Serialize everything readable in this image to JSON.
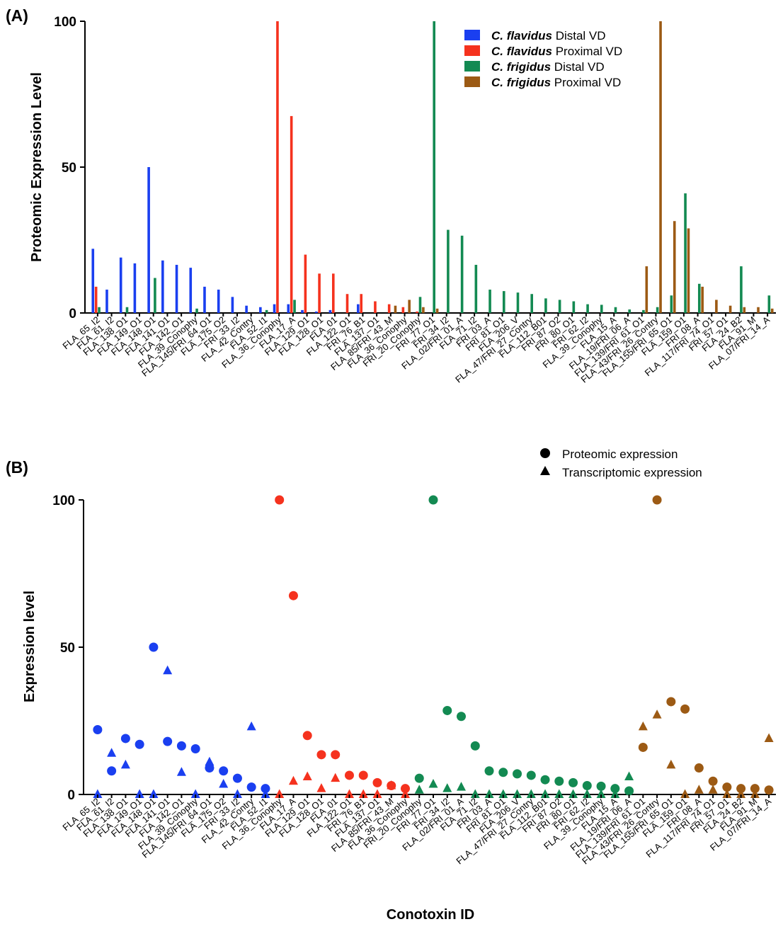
{
  "chart_data": [
    {
      "panel": "(A)",
      "type": "bar",
      "ylabel": "Proteomic Expression Level",
      "xlabel": "",
      "ylim": [
        0,
        100
      ],
      "yticks": [
        0,
        50,
        100
      ],
      "categories": [
        "FLA_65_I2",
        "FLA_61_I2",
        "FLA_138_O1",
        "FLA_149_O1",
        "FLA_148_O1",
        "FLA_141_O1",
        "FLA_142_O1",
        "FLA_39_Conophy",
        "FLA_145/FRI_64_O1",
        "FLA_175_O2",
        "FRI_33_I2",
        "FLA_42_Contry",
        "FLA_52_I1",
        "FLA_36_Conophy",
        "FLA_17_A",
        "FLA_129_O1",
        "FLA_128_O1",
        "FLA_01",
        "FLA_122_O1",
        "FRI_76_B1",
        "FLA_137_O1",
        "FLA_85/FRI_43_M",
        "FLA_36_Conophy",
        "FRI_20_Conophy",
        "FRI_77_O1",
        "FRI_34_I2",
        "FLA_02/FRI_01_A",
        "FLA_71_I2",
        "FRI_03_A",
        "FRI_81_O1",
        "FLA_206_V",
        "FLA_47/FRI_27_Contry",
        "FLA_112_B01",
        "FRI_87_O2",
        "FRI_80_O1",
        "FRI_62_I2",
        "FLA_39_Conophy",
        "FLA_15_A",
        "FLA_19/FRI_06_A",
        "FLA_139/FRI_61_O1",
        "FLA_43/FRI_26_Contry",
        "FLA_155/FRI_65_O1",
        "FLA_159_O1",
        "FRI_08_A",
        "FLA_117/FRI_74_O1",
        "FRI_57_O1",
        "FLA_24_B2",
        "FLA_91_M",
        "FLA_07/FRI_14_A"
      ],
      "legend": {
        "position": "top-right",
        "entries": [
          {
            "species": "C. flavidus",
            "label": "Distal VD",
            "color": "#1a3ff0"
          },
          {
            "species": "C. flavidus",
            "label": "Proximal VD",
            "color": "#f5321e"
          },
          {
            "species": "C. frigidus",
            "label": "Distal VD",
            "color": "#138a52"
          },
          {
            "species": "C. frigidus",
            "label": "Proximal VD",
            "color": "#9c5a14"
          }
        ]
      },
      "series": [
        {
          "name": "C. flavidus Distal VD",
          "color": "#1a3ff0",
          "values": [
            22,
            8,
            19,
            17,
            50,
            18,
            16.5,
            15.5,
            9,
            8,
            5.5,
            2.5,
            2,
            3,
            3,
            1,
            0.5,
            1,
            0,
            3,
            0,
            0,
            0,
            0,
            0,
            0,
            0,
            0,
            0,
            0,
            0,
            0,
            0,
            0,
            0,
            0,
            0,
            0,
            0,
            0,
            0,
            0,
            0,
            0,
            0,
            0,
            0,
            0,
            0
          ]
        },
        {
          "name": "C. flavidus Proximal VD",
          "color": "#f5321e",
          "values": [
            9,
            0,
            0,
            0,
            0,
            0,
            0,
            0,
            0,
            0,
            0,
            0,
            0,
            100,
            67.5,
            20,
            13.5,
            13.5,
            6.5,
            6.5,
            4,
            3,
            2,
            0.5,
            0,
            0,
            0,
            0,
            0,
            0,
            0,
            0,
            0,
            0,
            0,
            0,
            0,
            0,
            0,
            0,
            0,
            0,
            0,
            0,
            0,
            0,
            0,
            0,
            0
          ]
        },
        {
          "name": "C. frigidus Distal VD",
          "color": "#138a52",
          "values": [
            2,
            0,
            2,
            0,
            12,
            0,
            0,
            1.5,
            0,
            0,
            0,
            0,
            1,
            0,
            4.5,
            0,
            0,
            0,
            0,
            0,
            0,
            0,
            0,
            5.5,
            100,
            28.5,
            26.5,
            16.5,
            8,
            7.5,
            7,
            6.5,
            5,
            4.5,
            4,
            3,
            2.8,
            2,
            1.2,
            1,
            2,
            6,
            41,
            10,
            0,
            0,
            16,
            0,
            6
          ]
        },
        {
          "name": "C. frigidus Proximal VD",
          "color": "#9c5a14",
          "values": [
            0,
            0,
            0,
            0,
            0,
            0,
            0,
            0,
            0,
            0,
            0,
            0,
            0,
            0,
            0,
            0,
            0,
            0,
            0,
            0,
            0,
            2.5,
            4.5,
            2,
            1.5,
            0,
            0,
            0,
            0,
            0,
            0,
            0,
            0,
            0,
            0,
            0,
            0,
            0,
            0,
            16,
            100,
            31.5,
            29,
            9,
            4.5,
            2.5,
            2,
            2,
            1.5
          ]
        }
      ]
    },
    {
      "panel": "(B)",
      "type": "scatter",
      "ylabel": "Expression level",
      "xlabel": "Conotoxin ID",
      "ylim": [
        0,
        100
      ],
      "yticks": [
        0,
        50,
        100
      ],
      "legend": {
        "position": "top-right",
        "entries": [
          {
            "marker": "circle",
            "label": "Proteomic expression"
          },
          {
            "marker": "triangle",
            "label": "Transcriptomic expression"
          }
        ]
      },
      "categories": [
        "FLA_65_I2",
        "FLA_61_I2",
        "FLA_138_O1",
        "FLA_149_O1",
        "FLA_148_O1",
        "FLA_141_O1",
        "FLA_142_O1",
        "FLA_39_Conophy",
        "FLA_145/FRI_64_O1",
        "FLA_175_O2",
        "FRI_33_I2",
        "FLA_42_Contry",
        "FLA_52_I1",
        "FLA_36_Conophy",
        "FLA_17_A",
        "FLA_129_O1",
        "FLA_128_O1",
        "FLA_01",
        "FLA_122_O1",
        "FRI_76_B1",
        "FLA_137_O1",
        "FLA_85/FRI_43_M",
        "FLA_36_Conophy",
        "FRI_20_Conophy",
        "FRI_77_O1",
        "FRI_34_I2",
        "FLA_02/FRI_01_A",
        "FLA_71_I2",
        "FRI_03_A",
        "FRI_81_O1",
        "FLA_206_V",
        "FLA_47/FRI_27_Contry",
        "FLA_112_B01",
        "FRI_87_O2",
        "FRI_80_O1",
        "FRI_62_I2",
        "FLA_39_Conophy",
        "FLA_15_A",
        "FLA_19/FRI_06_A",
        "FLA_139/FRI_61_O1",
        "FLA_43/FRI_26_Contry",
        "FLA_155/FRI_65_O1",
        "FLA_159_O1",
        "FRI_08_A",
        "FLA_117/FRI_74_O1",
        "FRI_57_O1",
        "FLA_24_B2",
        "FLA_91_M",
        "FLA_07/FRI_14_A"
      ],
      "series": [
        {
          "name": "Proteomic expression",
          "marker": "circle",
          "colors": [
            "#1a3ff0",
            "#1a3ff0",
            "#1a3ff0",
            "#1a3ff0",
            "#1a3ff0",
            "#1a3ff0",
            "#1a3ff0",
            "#1a3ff0",
            "#1a3ff0",
            "#1a3ff0",
            "#1a3ff0",
            "#1a3ff0",
            "#1a3ff0",
            "#f5321e",
            "#f5321e",
            "#f5321e",
            "#f5321e",
            "#f5321e",
            "#f5321e",
            "#f5321e",
            "#f5321e",
            "#f5321e",
            "#f5321e",
            "#138a52",
            "#138a52",
            "#138a52",
            "#138a52",
            "#138a52",
            "#138a52",
            "#138a52",
            "#138a52",
            "#138a52",
            "#138a52",
            "#138a52",
            "#138a52",
            "#138a52",
            "#138a52",
            "#138a52",
            "#138a52",
            "#9c5a14",
            "#9c5a14",
            "#9c5a14",
            "#9c5a14",
            "#9c5a14",
            "#9c5a14",
            "#9c5a14",
            "#9c5a14",
            "#9c5a14",
            "#9c5a14"
          ],
          "values": [
            22,
            8,
            19,
            17,
            50,
            18,
            16.5,
            15.5,
            9,
            8,
            5.5,
            2.5,
            2,
            100,
            67.5,
            20,
            13.5,
            13.5,
            6.5,
            6.5,
            4,
            3,
            2,
            5.5,
            100,
            28.5,
            26.5,
            16.5,
            8,
            7.5,
            7,
            6.5,
            5,
            4.5,
            4,
            3,
            2.8,
            2,
            1.2,
            16,
            100,
            31.5,
            29,
            9,
            4.5,
            2.5,
            2,
            2,
            1.5
          ]
        },
        {
          "name": "Transcriptomic expression",
          "marker": "triangle",
          "colors": [
            "#1a3ff0",
            "#1a3ff0",
            "#1a3ff0",
            "#1a3ff0",
            "#1a3ff0",
            "#1a3ff0",
            "#1a3ff0",
            "#1a3ff0",
            "#1a3ff0",
            "#1a3ff0",
            "#1a3ff0",
            "#1a3ff0",
            "#1a3ff0",
            "#f5321e",
            "#f5321e",
            "#f5321e",
            "#f5321e",
            "#f5321e",
            "#f5321e",
            "#f5321e",
            "#f5321e",
            "#f5321e",
            "#f5321e",
            "#138a52",
            "#138a52",
            "#138a52",
            "#138a52",
            "#138a52",
            "#138a52",
            "#138a52",
            "#138a52",
            "#138a52",
            "#138a52",
            "#138a52",
            "#138a52",
            "#138a52",
            "#138a52",
            "#138a52",
            "#138a52",
            "#9c5a14",
            "#9c5a14",
            "#9c5a14",
            "#9c5a14",
            "#9c5a14",
            "#9c5a14",
            "#9c5a14",
            "#9c5a14",
            "#9c5a14",
            "#9c5a14"
          ],
          "values": [
            0,
            14,
            10,
            0,
            0,
            42,
            7.5,
            0,
            11,
            3.5,
            0,
            23,
            0,
            0,
            4.5,
            6,
            2,
            5.5,
            0,
            0,
            0,
            3,
            0,
            1.5,
            3.5,
            2,
            2.5,
            0,
            0,
            0,
            0,
            0,
            0,
            0,
            0,
            0,
            0,
            0,
            6,
            23,
            27,
            10,
            0,
            1.5,
            1.5,
            0,
            0,
            0,
            19
          ]
        }
      ]
    }
  ]
}
